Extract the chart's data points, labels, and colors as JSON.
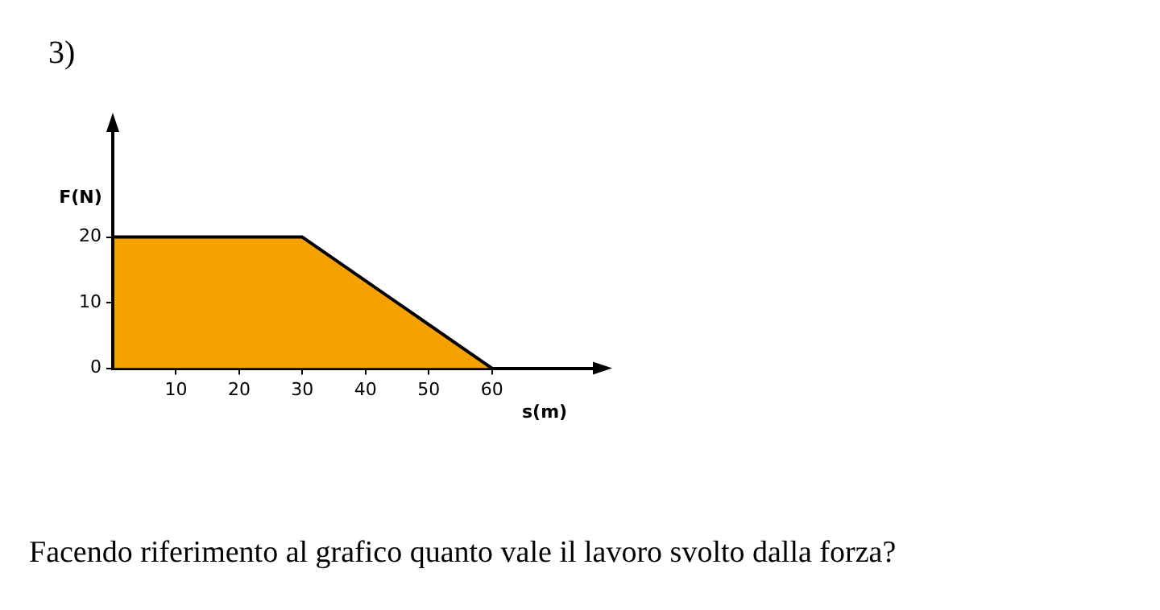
{
  "chart_data": {
    "type": "area",
    "title": "3)",
    "xlabel": "s(m)",
    "ylabel": "F(N)",
    "x": [
      0,
      0,
      30,
      60
    ],
    "series": [
      {
        "color": "#f5a200",
        "values": [
          0,
          20,
          20,
          0
        ]
      }
    ],
    "xlim": [
      0,
      77
    ],
    "ylim": [
      0,
      37
    ],
    "xticks": [
      10,
      20,
      30,
      40,
      50,
      60
    ],
    "yticks": [
      0,
      10,
      20
    ],
    "grid": false,
    "legend": false,
    "annotations": [
      "Facendo riferimento al grafico quanto vale il lavoro svolto dalla forza?"
    ]
  }
}
